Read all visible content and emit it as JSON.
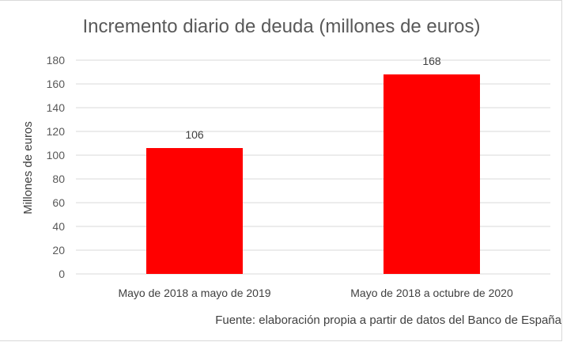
{
  "chart_data": {
    "type": "bar",
    "title": "Incremento diario de deuda (millones de euros)",
    "ylabel": "Millones de euros",
    "xlabel": "",
    "categories": [
      "Mayo de 2018 a mayo de 2019",
      "Mayo de 2018 a octubre de 2020"
    ],
    "values": [
      106,
      168
    ],
    "data_labels": [
      "106",
      "168"
    ],
    "ylim": [
      0,
      180
    ],
    "yticks": [
      0,
      20,
      40,
      60,
      80,
      100,
      120,
      140,
      160,
      180
    ],
    "grid": true,
    "legend": "none",
    "bar_color": "#ff0000",
    "grid_color": "#d9d9d9",
    "source": "Fuente: elaboración propia a partir de datos del Banco de España"
  }
}
